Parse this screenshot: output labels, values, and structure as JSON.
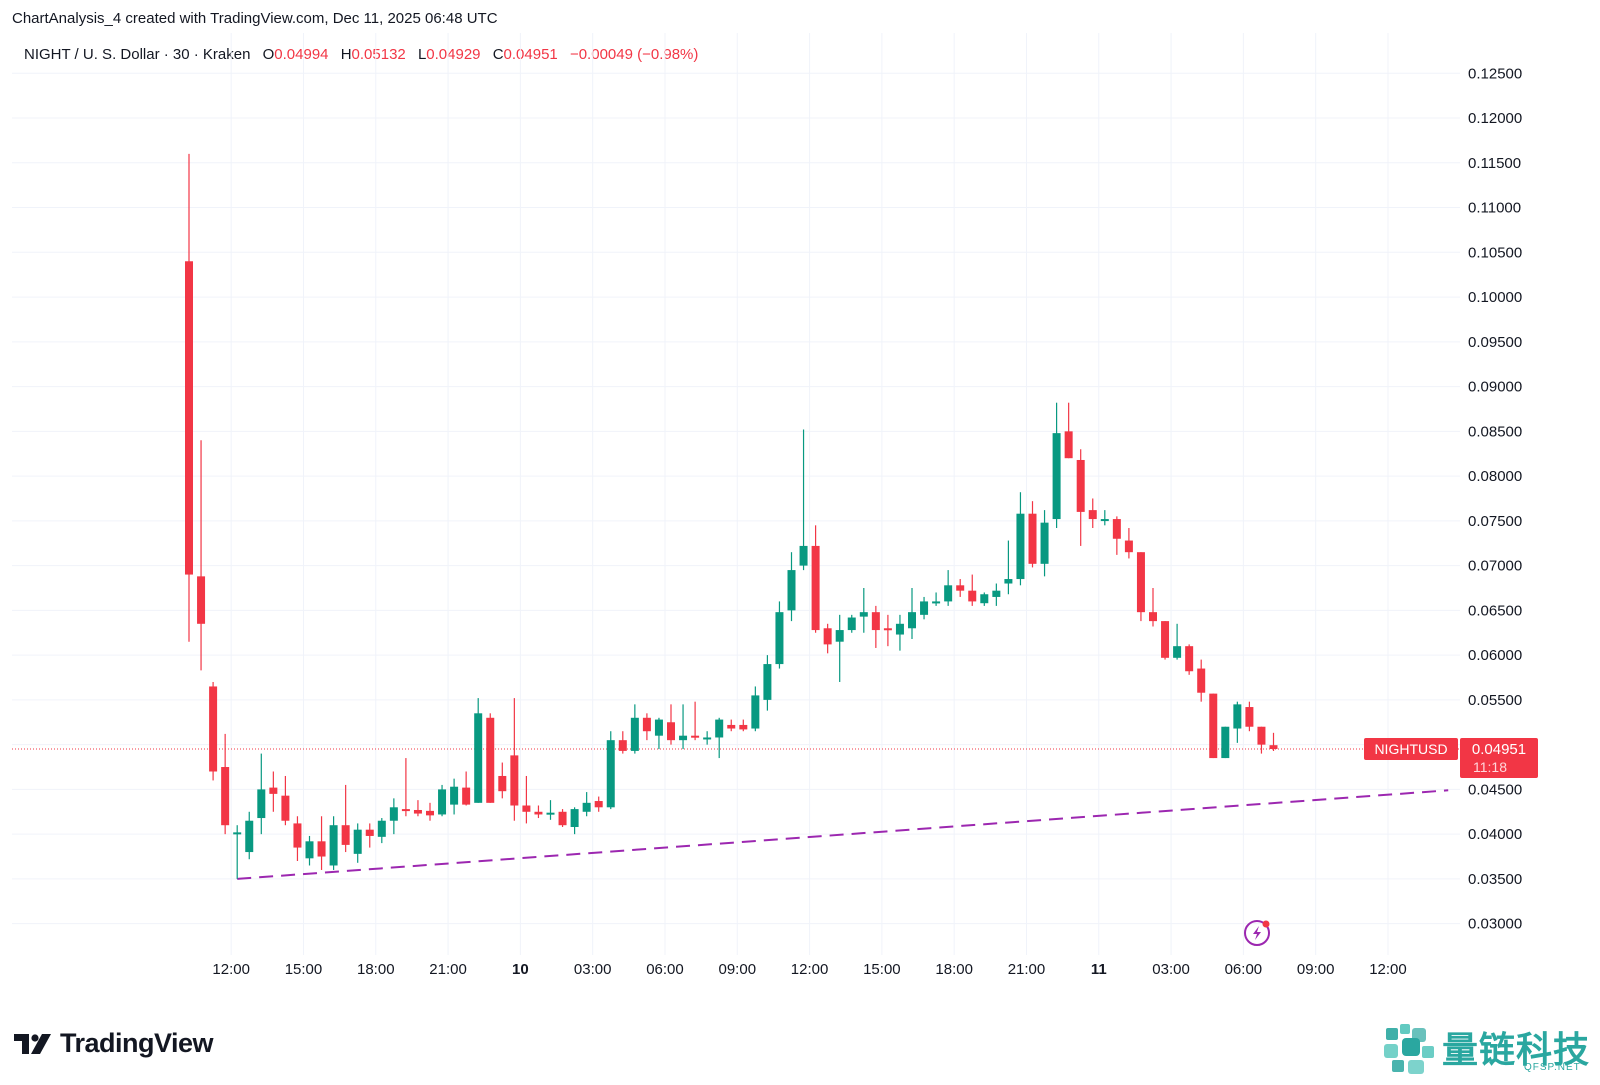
{
  "header": {
    "credit": "ChartAnalysis_4 created with TradingView.com, Dec 11, 2025 06:48 UTC"
  },
  "legend": {
    "symbol": "NIGHT / U. S. Dollar · 30 · Kraken",
    "o_label": "O",
    "o_value": "0.04994",
    "h_label": "H",
    "h_value": "0.05132",
    "l_label": "L",
    "l_value": "0.04929",
    "c_label": "C",
    "c_value": "0.04951",
    "change": "−0.00049 (−0.98%)"
  },
  "price_label": {
    "ticker": "NIGHTUSD",
    "price": "0.04951",
    "countdown": "11:18"
  },
  "branding": {
    "logo_text": "TradingView",
    "watermark_cn": "量链科技",
    "watermark_site": "QFSP.NET"
  },
  "colors": {
    "up": "#089981",
    "down": "#f23645",
    "trendline": "#9c27b0",
    "grid": "#f0f3fa",
    "text": "#131722",
    "accent": "#2aa7a0"
  },
  "chart_data": {
    "type": "candlestick",
    "title": "NIGHT / U. S. Dollar · 30 · Kraken",
    "interval_minutes": 30,
    "ylim": [
      0.0265,
      0.1295
    ],
    "y_ticks": [
      0.03,
      0.035,
      0.04,
      0.045,
      0.05,
      0.055,
      0.06,
      0.065,
      0.07,
      0.075,
      0.08,
      0.085,
      0.09,
      0.095,
      0.1,
      0.105,
      0.11,
      0.115,
      0.12,
      0.125
    ],
    "x_ticks": [
      {
        "i": 3.5,
        "label": "12:00",
        "bold": false
      },
      {
        "i": 9.5,
        "label": "15:00",
        "bold": false
      },
      {
        "i": 15.5,
        "label": "18:00",
        "bold": false
      },
      {
        "i": 21.5,
        "label": "21:00",
        "bold": false
      },
      {
        "i": 27.5,
        "label": "10",
        "bold": true
      },
      {
        "i": 33.5,
        "label": "03:00",
        "bold": false
      },
      {
        "i": 39.5,
        "label": "06:00",
        "bold": false
      },
      {
        "i": 45.5,
        "label": "09:00",
        "bold": false
      },
      {
        "i": 51.5,
        "label": "12:00",
        "bold": false
      },
      {
        "i": 57.5,
        "label": "15:00",
        "bold": false
      },
      {
        "i": 63.5,
        "label": "18:00",
        "bold": false
      },
      {
        "i": 69.5,
        "label": "21:00",
        "bold": false
      },
      {
        "i": 75.5,
        "label": "11",
        "bold": true
      },
      {
        "i": 81.5,
        "label": "03:00",
        "bold": false
      },
      {
        "i": 87.5,
        "label": "06:00",
        "bold": false
      },
      {
        "i": 93.5,
        "label": "09:00",
        "bold": false
      },
      {
        "i": 99.5,
        "label": "12:00",
        "bold": false
      }
    ],
    "candles": [
      {
        "o": 0.104,
        "h": 0.116,
        "l": 0.0615,
        "c": 0.069
      },
      {
        "o": 0.0688,
        "h": 0.084,
        "l": 0.0583,
        "c": 0.0635
      },
      {
        "o": 0.0565,
        "h": 0.057,
        "l": 0.046,
        "c": 0.047
      },
      {
        "o": 0.0475,
        "h": 0.0512,
        "l": 0.04,
        "c": 0.041
      },
      {
        "o": 0.04,
        "h": 0.041,
        "l": 0.035,
        "c": 0.0402
      },
      {
        "o": 0.038,
        "h": 0.0425,
        "l": 0.0372,
        "c": 0.0415
      },
      {
        "o": 0.0418,
        "h": 0.049,
        "l": 0.04,
        "c": 0.045
      },
      {
        "o": 0.0452,
        "h": 0.047,
        "l": 0.0425,
        "c": 0.0445
      },
      {
        "o": 0.0443,
        "h": 0.0465,
        "l": 0.041,
        "c": 0.0415
      },
      {
        "o": 0.0412,
        "h": 0.042,
        "l": 0.037,
        "c": 0.0385
      },
      {
        "o": 0.0373,
        "h": 0.0398,
        "l": 0.0365,
        "c": 0.0392
      },
      {
        "o": 0.0392,
        "h": 0.042,
        "l": 0.036,
        "c": 0.0375
      },
      {
        "o": 0.0365,
        "h": 0.042,
        "l": 0.036,
        "c": 0.041
      },
      {
        "o": 0.041,
        "h": 0.0455,
        "l": 0.038,
        "c": 0.0388
      },
      {
        "o": 0.0378,
        "h": 0.0412,
        "l": 0.0368,
        "c": 0.0405
      },
      {
        "o": 0.0405,
        "h": 0.0412,
        "l": 0.0385,
        "c": 0.0398
      },
      {
        "o": 0.0397,
        "h": 0.0418,
        "l": 0.039,
        "c": 0.0415
      },
      {
        "o": 0.0415,
        "h": 0.044,
        "l": 0.04,
        "c": 0.043
      },
      {
        "o": 0.0428,
        "h": 0.0485,
        "l": 0.042,
        "c": 0.0427
      },
      {
        "o": 0.0427,
        "h": 0.0438,
        "l": 0.042,
        "c": 0.0423
      },
      {
        "o": 0.0426,
        "h": 0.0435,
        "l": 0.0415,
        "c": 0.0421
      },
      {
        "o": 0.0422,
        "h": 0.0455,
        "l": 0.042,
        "c": 0.045
      },
      {
        "o": 0.0433,
        "h": 0.0462,
        "l": 0.0422,
        "c": 0.0453
      },
      {
        "o": 0.0452,
        "h": 0.047,
        "l": 0.0432,
        "c": 0.0433
      },
      {
        "o": 0.0435,
        "h": 0.0552,
        "l": 0.0435,
        "c": 0.0535
      },
      {
        "o": 0.053,
        "h": 0.0535,
        "l": 0.0435,
        "c": 0.0435
      },
      {
        "o": 0.0465,
        "h": 0.048,
        "l": 0.044,
        "c": 0.0448
      },
      {
        "o": 0.0488,
        "h": 0.0552,
        "l": 0.0415,
        "c": 0.0432
      },
      {
        "o": 0.0432,
        "h": 0.0465,
        "l": 0.0412,
        "c": 0.0425
      },
      {
        "o": 0.0425,
        "h": 0.0432,
        "l": 0.0418,
        "c": 0.0422
      },
      {
        "o": 0.0423,
        "h": 0.0438,
        "l": 0.0416,
        "c": 0.0424
      },
      {
        "o": 0.0425,
        "h": 0.0428,
        "l": 0.0408,
        "c": 0.041
      },
      {
        "o": 0.0408,
        "h": 0.043,
        "l": 0.04,
        "c": 0.0428
      },
      {
        "o": 0.0425,
        "h": 0.0447,
        "l": 0.042,
        "c": 0.0435
      },
      {
        "o": 0.0437,
        "h": 0.0442,
        "l": 0.0425,
        "c": 0.043
      },
      {
        "o": 0.043,
        "h": 0.0515,
        "l": 0.0428,
        "c": 0.0505
      },
      {
        "o": 0.0505,
        "h": 0.0515,
        "l": 0.049,
        "c": 0.0493
      },
      {
        "o": 0.0493,
        "h": 0.0545,
        "l": 0.049,
        "c": 0.053
      },
      {
        "o": 0.053,
        "h": 0.0535,
        "l": 0.0505,
        "c": 0.0515
      },
      {
        "o": 0.051,
        "h": 0.053,
        "l": 0.0495,
        "c": 0.0528
      },
      {
        "o": 0.0525,
        "h": 0.0545,
        "l": 0.05,
        "c": 0.0505
      },
      {
        "o": 0.0505,
        "h": 0.0545,
        "l": 0.0495,
        "c": 0.051
      },
      {
        "o": 0.051,
        "h": 0.0548,
        "l": 0.0505,
        "c": 0.0508
      },
      {
        "o": 0.0508,
        "h": 0.0515,
        "l": 0.05,
        "c": 0.0508
      },
      {
        "o": 0.0508,
        "h": 0.053,
        "l": 0.0485,
        "c": 0.0528
      },
      {
        "o": 0.0522,
        "h": 0.0528,
        "l": 0.0515,
        "c": 0.0518
      },
      {
        "o": 0.0522,
        "h": 0.0528,
        "l": 0.0515,
        "c": 0.0517
      },
      {
        "o": 0.0518,
        "h": 0.0565,
        "l": 0.0515,
        "c": 0.0555
      },
      {
        "o": 0.055,
        "h": 0.06,
        "l": 0.0538,
        "c": 0.059
      },
      {
        "o": 0.059,
        "h": 0.066,
        "l": 0.0585,
        "c": 0.0648
      },
      {
        "o": 0.065,
        "h": 0.0715,
        "l": 0.0638,
        "c": 0.0695
      },
      {
        "o": 0.07,
        "h": 0.0852,
        "l": 0.0695,
        "c": 0.0722
      },
      {
        "o": 0.0722,
        "h": 0.0745,
        "l": 0.0625,
        "c": 0.0628
      },
      {
        "o": 0.063,
        "h": 0.0635,
        "l": 0.0602,
        "c": 0.0612
      },
      {
        "o": 0.0615,
        "h": 0.0645,
        "l": 0.057,
        "c": 0.0628
      },
      {
        "o": 0.0628,
        "h": 0.0645,
        "l": 0.0625,
        "c": 0.0642
      },
      {
        "o": 0.0643,
        "h": 0.0675,
        "l": 0.0625,
        "c": 0.0648
      },
      {
        "o": 0.0648,
        "h": 0.0655,
        "l": 0.0608,
        "c": 0.0628
      },
      {
        "o": 0.063,
        "h": 0.0645,
        "l": 0.061,
        "c": 0.0628
      },
      {
        "o": 0.0623,
        "h": 0.0645,
        "l": 0.0605,
        "c": 0.0635
      },
      {
        "o": 0.063,
        "h": 0.0675,
        "l": 0.0618,
        "c": 0.0648
      },
      {
        "o": 0.0645,
        "h": 0.0665,
        "l": 0.064,
        "c": 0.066
      },
      {
        "o": 0.0658,
        "h": 0.067,
        "l": 0.0655,
        "c": 0.066
      },
      {
        "o": 0.066,
        "h": 0.0695,
        "l": 0.0655,
        "c": 0.0678
      },
      {
        "o": 0.0678,
        "h": 0.0685,
        "l": 0.0665,
        "c": 0.0672
      },
      {
        "o": 0.0672,
        "h": 0.069,
        "l": 0.0655,
        "c": 0.066
      },
      {
        "o": 0.0658,
        "h": 0.067,
        "l": 0.0655,
        "c": 0.0668
      },
      {
        "o": 0.0665,
        "h": 0.068,
        "l": 0.0655,
        "c": 0.0672
      },
      {
        "o": 0.068,
        "h": 0.0728,
        "l": 0.0668,
        "c": 0.0685
      },
      {
        "o": 0.0685,
        "h": 0.0782,
        "l": 0.0678,
        "c": 0.0758
      },
      {
        "o": 0.0758,
        "h": 0.0772,
        "l": 0.0698,
        "c": 0.0702
      },
      {
        "o": 0.0702,
        "h": 0.0762,
        "l": 0.0688,
        "c": 0.0748
      },
      {
        "o": 0.0752,
        "h": 0.0882,
        "l": 0.0742,
        "c": 0.0848
      },
      {
        "o": 0.085,
        "h": 0.0882,
        "l": 0.082,
        "c": 0.082
      },
      {
        "o": 0.0818,
        "h": 0.083,
        "l": 0.0722,
        "c": 0.076
      },
      {
        "o": 0.0762,
        "h": 0.0775,
        "l": 0.0742,
        "c": 0.0752
      },
      {
        "o": 0.0752,
        "h": 0.0762,
        "l": 0.0745,
        "c": 0.0752
      },
      {
        "o": 0.0752,
        "h": 0.0755,
        "l": 0.0712,
        "c": 0.073
      },
      {
        "o": 0.0728,
        "h": 0.0742,
        "l": 0.0708,
        "c": 0.0715
      },
      {
        "o": 0.0715,
        "h": 0.0715,
        "l": 0.0638,
        "c": 0.0648
      },
      {
        "o": 0.0648,
        "h": 0.0675,
        "l": 0.0632,
        "c": 0.0638
      },
      {
        "o": 0.0638,
        "h": 0.0638,
        "l": 0.0595,
        "c": 0.0597
      },
      {
        "o": 0.0597,
        "h": 0.0635,
        "l": 0.0595,
        "c": 0.061
      },
      {
        "o": 0.061,
        "h": 0.0612,
        "l": 0.0578,
        "c": 0.0582
      },
      {
        "o": 0.0585,
        "h": 0.0595,
        "l": 0.0548,
        "c": 0.0558
      },
      {
        "o": 0.0557,
        "h": 0.0557,
        "l": 0.0485,
        "c": 0.0485
      },
      {
        "o": 0.0485,
        "h": 0.052,
        "l": 0.0485,
        "c": 0.052
      },
      {
        "o": 0.0518,
        "h": 0.0548,
        "l": 0.0502,
        "c": 0.0545
      },
      {
        "o": 0.0542,
        "h": 0.0548,
        "l": 0.0515,
        "c": 0.052
      },
      {
        "o": 0.052,
        "h": 0.052,
        "l": 0.049,
        "c": 0.05
      },
      {
        "o": 0.04994,
        "h": 0.05132,
        "l": 0.04929,
        "c": 0.04951
      }
    ],
    "last_price": 0.04951,
    "trendline": {
      "start": {
        "i": 4,
        "price": 0.035
      },
      "end": {
        "i": 104.5,
        "price": 0.0449
      },
      "style": "dashed"
    }
  }
}
